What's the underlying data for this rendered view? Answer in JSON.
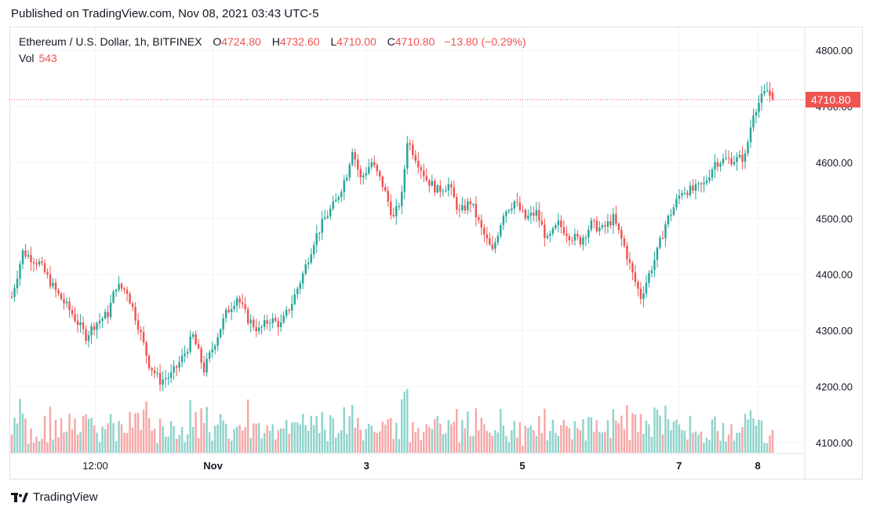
{
  "header": {
    "published": "Published on TradingView.com, Nov 08, 2021 03:43 UTC-5"
  },
  "legend": {
    "symbol": "Ethereum / U.S. Dollar, 1h, BITFINEX",
    "open_label": "O",
    "open": "4724.80",
    "high_label": "H",
    "high": "4732.60",
    "low_label": "L",
    "low": "4710.00",
    "close_label": "C",
    "close": "4710.80",
    "change": "−13.80 (−0.29%)",
    "vol_label": "Vol",
    "vol": "543"
  },
  "price_tag": "4710.80",
  "footer": {
    "brand": "TradingView",
    "logo": "tradingview-logo-icon"
  },
  "colors": {
    "up": "#26a69a",
    "down": "#ef5350",
    "up_vol": "#8fd3cb",
    "down_vol": "#f5a7a6",
    "grid": "#f0f3fa"
  },
  "chart_data": {
    "type": "candlestick",
    "y_ticks": [
      "4800.00",
      "4700.00",
      "4600.00",
      "4500.00",
      "4400.00",
      "4300.00",
      "4200.00",
      "4100.00"
    ],
    "ylim": [
      4100,
      4800
    ],
    "x_ticks": [
      {
        "label": "12:00",
        "pos": 0.108,
        "bold": false
      },
      {
        "label": "Nov",
        "pos": 0.256,
        "bold": true
      },
      {
        "label": "3",
        "pos": 0.449,
        "bold": true
      },
      {
        "label": "5",
        "pos": 0.645,
        "bold": true
      },
      {
        "label": "7",
        "pos": 0.842,
        "bold": true
      },
      {
        "label": "8",
        "pos": 0.941,
        "bold": true
      }
    ],
    "anchors": [
      [
        0,
        4360
      ],
      [
        4,
        4440
      ],
      [
        10,
        4420
      ],
      [
        16,
        4370
      ],
      [
        22,
        4330
      ],
      [
        27,
        4290
      ],
      [
        30,
        4310
      ],
      [
        35,
        4330
      ],
      [
        38,
        4380
      ],
      [
        42,
        4370
      ],
      [
        46,
        4310
      ],
      [
        50,
        4240
      ],
      [
        54,
        4210
      ],
      [
        58,
        4220
      ],
      [
        62,
        4250
      ],
      [
        66,
        4290
      ],
      [
        70,
        4230
      ],
      [
        74,
        4280
      ],
      [
        78,
        4330
      ],
      [
        82,
        4360
      ],
      [
        86,
        4320
      ],
      [
        90,
        4300
      ],
      [
        94,
        4320
      ],
      [
        98,
        4310
      ],
      [
        102,
        4350
      ],
      [
        106,
        4400
      ],
      [
        110,
        4460
      ],
      [
        114,
        4500
      ],
      [
        118,
        4530
      ],
      [
        122,
        4580
      ],
      [
        124,
        4625
      ],
      [
        127,
        4570
      ],
      [
        131,
        4600
      ],
      [
        135,
        4560
      ],
      [
        139,
        4500
      ],
      [
        142,
        4540
      ],
      [
        144,
        4640
      ],
      [
        147,
        4610
      ],
      [
        151,
        4570
      ],
      [
        155,
        4550
      ],
      [
        159,
        4560
      ],
      [
        163,
        4510
      ],
      [
        167,
        4530
      ],
      [
        171,
        4480
      ],
      [
        175,
        4440
      ],
      [
        179,
        4510
      ],
      [
        183,
        4530
      ],
      [
        187,
        4500
      ],
      [
        191,
        4510
      ],
      [
        195,
        4460
      ],
      [
        199,
        4490
      ],
      [
        203,
        4470
      ],
      [
        207,
        4460
      ],
      [
        211,
        4490
      ],
      [
        215,
        4480
      ],
      [
        219,
        4500
      ],
      [
        223,
        4450
      ],
      [
        226,
        4400
      ],
      [
        229,
        4360
      ],
      [
        232,
        4400
      ],
      [
        235,
        4440
      ],
      [
        238,
        4490
      ],
      [
        241,
        4520
      ],
      [
        244,
        4550
      ],
      [
        248,
        4550
      ],
      [
        252,
        4560
      ],
      [
        256,
        4600
      ],
      [
        260,
        4605
      ],
      [
        264,
        4605
      ],
      [
        267,
        4610
      ],
      [
        270,
        4690
      ],
      [
        273,
        4715
      ],
      [
        275,
        4728
      ],
      [
        277,
        4711
      ]
    ]
  }
}
